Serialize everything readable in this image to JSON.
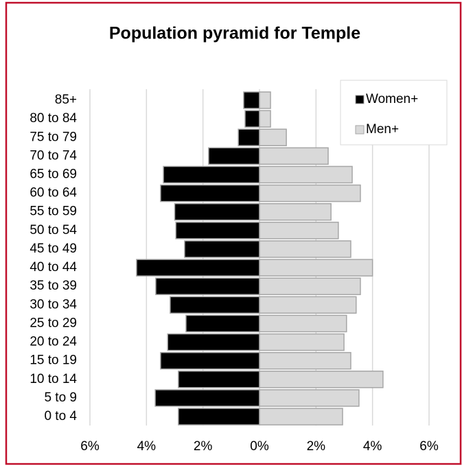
{
  "chart_data": {
    "type": "pyramid",
    "title": "Population pyramid for Temple",
    "categories": [
      "85+",
      "80 to 84",
      "75 to 79",
      "70 to 74",
      "65 to 69",
      "60 to 64",
      "55 to 59",
      "50 to 54",
      "45 to 49",
      "40 to 44",
      "35 to 39",
      "30 to 34",
      "25 to 29",
      "20 to 24",
      "15 to 19",
      "10 to 14",
      "5 to 9",
      "0 to 4"
    ],
    "series": [
      {
        "name": "Women+",
        "color": "#000000",
        "values": [
          -0.56,
          -0.51,
          -0.75,
          -1.8,
          -3.4,
          -3.5,
          -3.0,
          -2.96,
          -2.65,
          -4.35,
          -3.67,
          -3.16,
          -2.6,
          -3.25,
          -3.5,
          -2.87,
          -3.69,
          -2.87
        ]
      },
      {
        "name": "Men+",
        "color": "#d9d9d9",
        "values": [
          0.39,
          0.39,
          0.95,
          2.43,
          3.28,
          3.57,
          2.53,
          2.79,
          3.23,
          4.0,
          3.57,
          3.42,
          3.08,
          2.99,
          3.23,
          4.37,
          3.52,
          2.94
        ]
      }
    ],
    "xlim": [
      -6,
      6
    ],
    "xticks": [
      {
        "value": -6,
        "label": "6%"
      },
      {
        "value": -4,
        "label": "4%"
      },
      {
        "value": -2,
        "label": "2%"
      },
      {
        "value": 0,
        "label": "0%"
      },
      {
        "value": 2,
        "label": "2%"
      },
      {
        "value": 4,
        "label": "4%"
      },
      {
        "value": 6,
        "label": "6%"
      }
    ],
    "grid": true,
    "legend": "top-right"
  }
}
